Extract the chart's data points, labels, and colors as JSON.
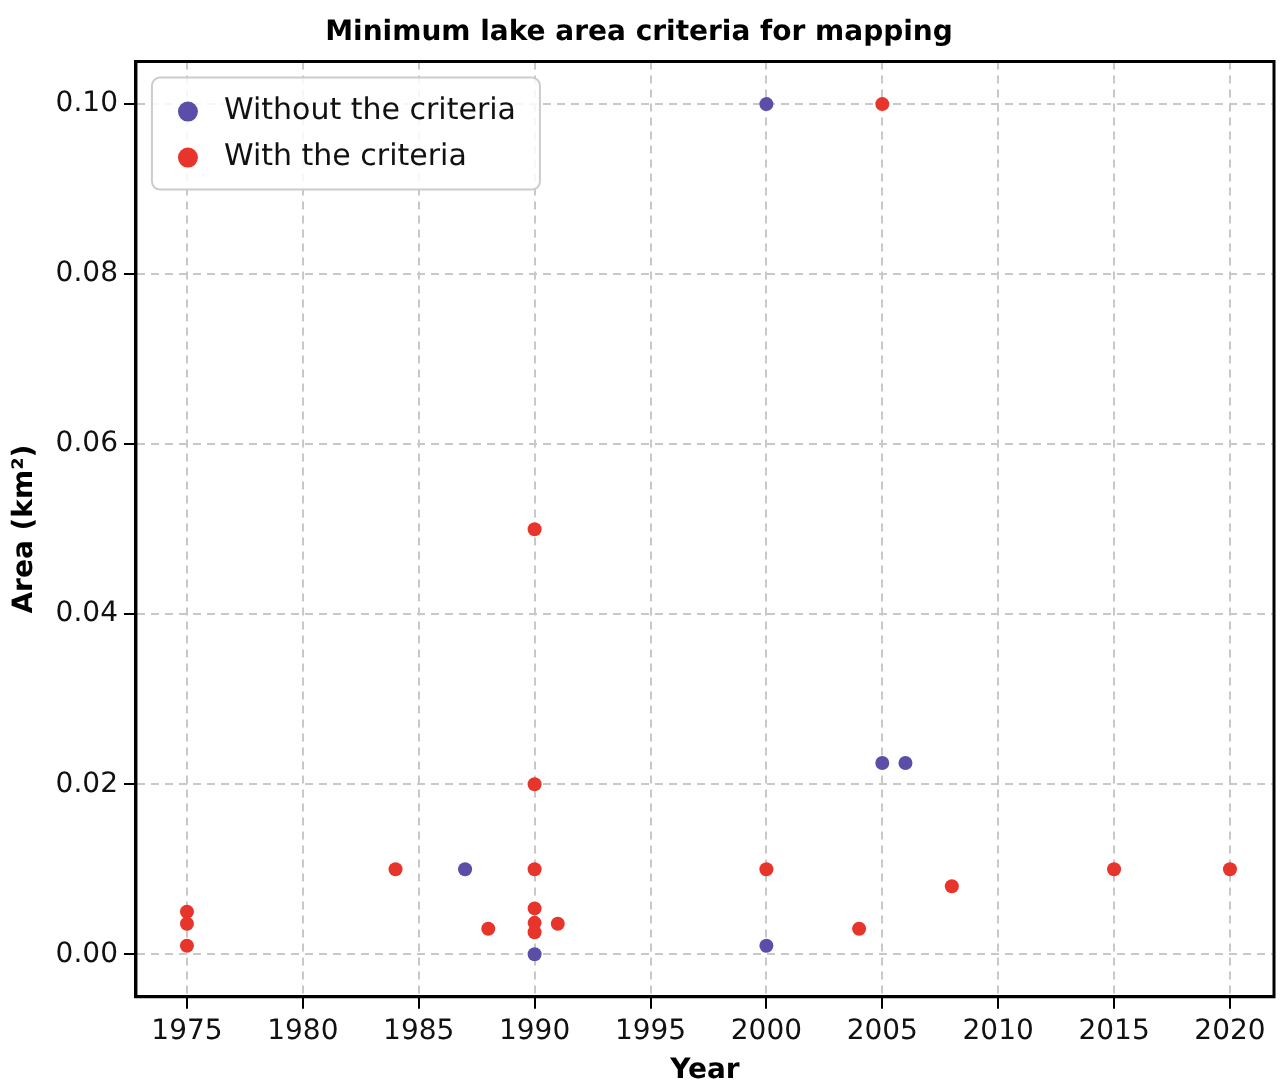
{
  "chart_data": {
    "type": "scatter",
    "title": "Minimum lake area criteria for mapping",
    "xlabel": "Year",
    "ylabel": "Area (km²)",
    "series": [
      {
        "name": "Without the criteria",
        "color": "#5b4ea8",
        "x": [
          1987,
          1990,
          2000,
          2000,
          2005,
          2006
        ],
        "values": [
          0.01,
          0.0,
          0.1,
          0.001,
          0.0225,
          0.0225
        ]
      },
      {
        "name": "With the criteria",
        "color": "#e8352b",
        "x": [
          1975,
          1975,
          1975,
          1984,
          1988,
          1990,
          1990,
          1990,
          1990,
          1990,
          1990,
          1991,
          2000,
          2004,
          2005,
          2008,
          2015,
          2020
        ],
        "values": [
          0.005,
          0.0036,
          0.001,
          0.01,
          0.003,
          0.05,
          0.02,
          0.01,
          0.0054,
          0.0037,
          0.0026,
          0.0036,
          0.01,
          0.003,
          0.1,
          0.008,
          0.01,
          0.01
        ]
      }
    ],
    "xlim": [
      1972.8,
      2021.9
    ],
    "xticks": [
      1975,
      1980,
      1985,
      1990,
      1995,
      2000,
      2005,
      2010,
      2015,
      2020
    ],
    "ylim": [
      -0.005,
      0.105
    ],
    "yticks": [
      {
        "value": 0,
        "label": "0.00"
      },
      {
        "value": 0.02,
        "label": "0.02"
      },
      {
        "value": 0.04,
        "label": "0.04"
      },
      {
        "value": 0.06,
        "label": "0.06"
      },
      {
        "value": 0.08,
        "label": "0.08"
      },
      {
        "value": 0.1,
        "label": "0.10"
      }
    ],
    "grid": true,
    "legend": "top left",
    "marker": "circle"
  }
}
